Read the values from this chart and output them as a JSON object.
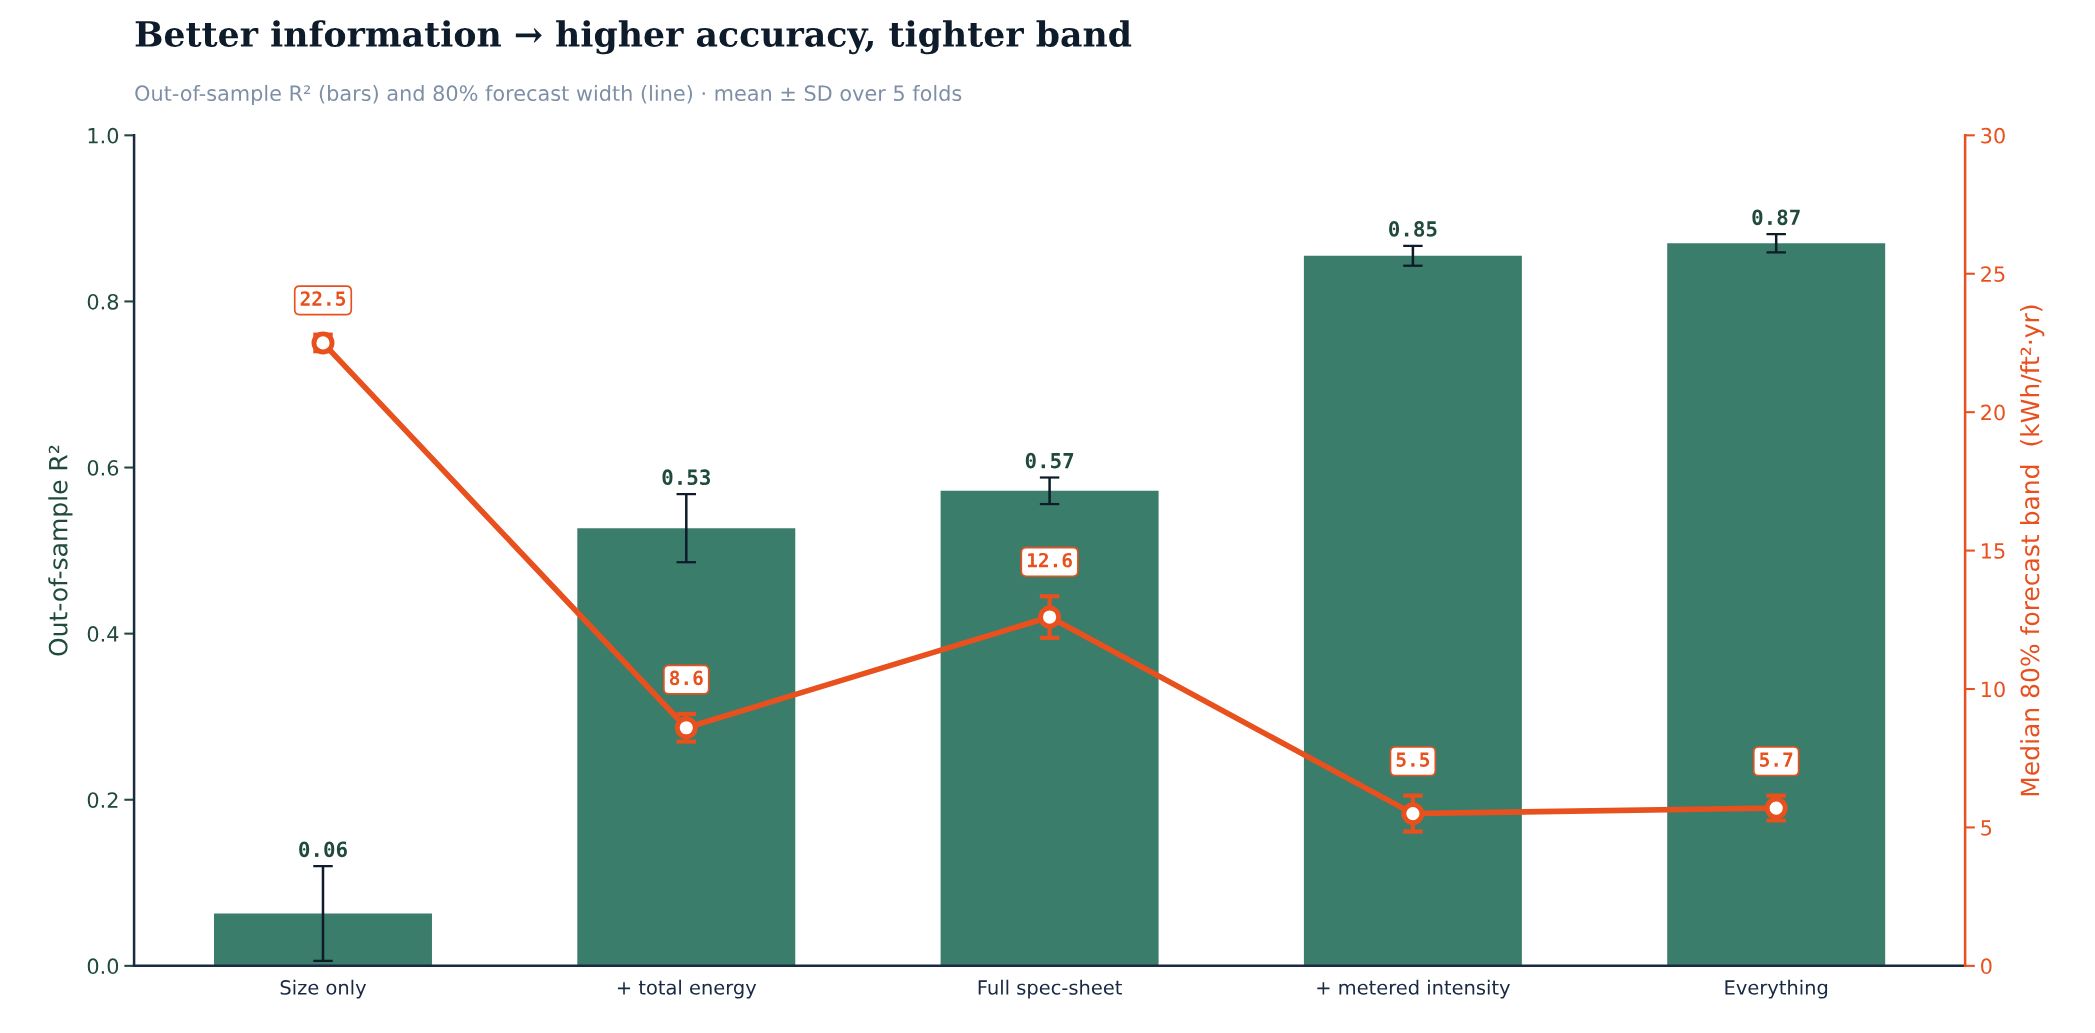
{
  "chart_data": {
    "type": "bar",
    "title": "Better information → higher accuracy, tighter band",
    "subtitle": "Out-of-sample R² (bars) and 80% forecast width (line) · mean ± SD over 5 folds",
    "ylabel": "Out-of-sample R²",
    "y2label": "Median 80% forecast band  (kWh/ft²·yr)",
    "categories": [
      "Size only",
      "+ total energy",
      "Full spec-sheet",
      "+ metered intensity",
      "Everything"
    ],
    "series": [
      {
        "color": "#3b7d6b",
        "values": [
          0.063,
          0.527,
          0.572,
          0.855,
          0.87
        ],
        "errors": [
          0.057,
          0.041,
          0.016,
          0.012,
          0.011
        ],
        "value_labels": [
          "0.06",
          "0.53",
          "0.57",
          "0.85",
          "0.87"
        ]
      },
      {
        "type": "line",
        "axis": "y2",
        "color": "#e8501e",
        "marker": "circle",
        "values": [
          22.5,
          8.6,
          12.6,
          5.5,
          5.7
        ],
        "errors": [
          0.3,
          0.5,
          0.75,
          0.65,
          0.45
        ],
        "value_labels": [
          "22.5",
          "8.6",
          "12.6",
          "5.5",
          "5.7"
        ]
      }
    ],
    "ylim": [
      0,
      1.0
    ],
    "yticks": [
      {
        "value": 0,
        "label": "0.0"
      },
      0.2,
      0.4,
      0.6,
      0.8,
      {
        "value": 1,
        "label": "1.0"
      }
    ],
    "y2lim": [
      0,
      30
    ],
    "y2ticks": [
      0,
      5,
      10,
      15,
      20,
      25,
      30
    ],
    "grid": false,
    "legend": false
  }
}
